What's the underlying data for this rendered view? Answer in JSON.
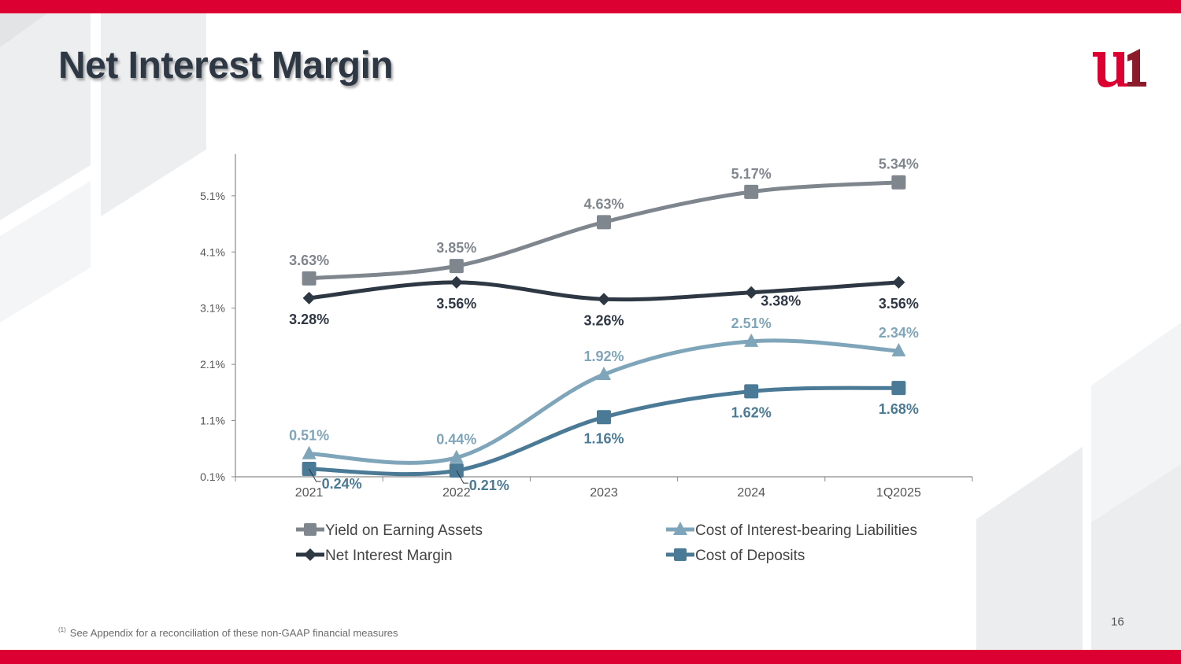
{
  "slide": {
    "title": "Net Interest Margin",
    "page_number": "16",
    "footnote_marker": "(1)",
    "footnote": "See Appendix for a reconciliation of these non-GAAP financial measures",
    "logo": "u1-logo",
    "colors": {
      "brand_red": "#dc0032",
      "logo_dark": "#8b1a2b",
      "title": "#2e3744"
    }
  },
  "chart_data": {
    "type": "line",
    "title": "",
    "xlabel": "",
    "ylabel": "",
    "categories": [
      "2021",
      "2022",
      "2023",
      "2024",
      "1Q2025"
    ],
    "y_ticks": [
      "0.1%",
      "1.1%",
      "2.1%",
      "3.1%",
      "4.1%",
      "5.1%"
    ],
    "y_tick_values": [
      0.1,
      1.1,
      2.1,
      3.1,
      4.1,
      5.1
    ],
    "ylim": [
      0.1,
      5.84
    ],
    "grid": false,
    "smooth": true,
    "legend_position": "bottom",
    "series": [
      {
        "name": "Yield on Earning Assets",
        "color": "#7f868e",
        "marker": "square",
        "values": [
          3.63,
          3.85,
          4.63,
          5.17,
          5.34
        ],
        "labels": [
          "3.63%",
          "3.85%",
          "4.63%",
          "5.17%",
          "5.34%"
        ],
        "label_pos": [
          "above",
          "above",
          "above",
          "above",
          "above"
        ],
        "label_bold": true
      },
      {
        "name": "Net Interest Margin",
        "color": "#2e3744",
        "marker": "diamond",
        "values": [
          3.28,
          3.56,
          3.26,
          3.38,
          3.56
        ],
        "labels": [
          "3.28%",
          "3.56%",
          "3.26%",
          "3.38%",
          "3.56%"
        ],
        "label_pos": [
          "below",
          "below",
          "below",
          "below-right",
          "below"
        ],
        "label_bold": true
      },
      {
        "name": "Cost of Interest-bearing Liabilities",
        "color": "#7fa5ba",
        "marker": "triangle",
        "values": [
          0.51,
          0.44,
          1.92,
          2.51,
          2.34
        ],
        "labels": [
          "0.51%",
          "0.44%",
          "1.92%",
          "2.51%",
          "2.34%"
        ],
        "label_pos": [
          "above",
          "above",
          "above",
          "above",
          "above"
        ],
        "label_bold": true
      },
      {
        "name": "Cost of Deposits",
        "color": "#4a7a95",
        "marker": "square",
        "values": [
          0.24,
          0.21,
          1.16,
          1.62,
          1.68
        ],
        "labels": [
          "0.24%",
          "0.21%",
          "1.16%",
          "1.62%",
          "1.68%"
        ],
        "label_pos": [
          "leader",
          "leader",
          "below",
          "below",
          "below"
        ],
        "label_bold": true
      }
    ],
    "legend": [
      {
        "label": "Yield on Earning Assets",
        "series": 0
      },
      {
        "label": "Cost of Interest-bearing Liabilities",
        "series": 2
      },
      {
        "label": "Net Interest Margin",
        "series": 1
      },
      {
        "label": "Cost of Deposits",
        "series": 3
      }
    ]
  }
}
